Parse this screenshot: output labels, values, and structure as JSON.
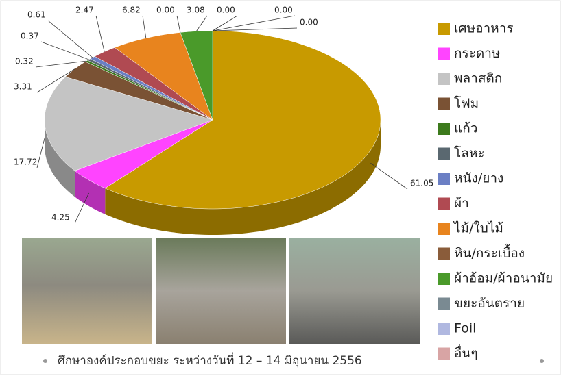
{
  "chart_data": {
    "type": "pie3d",
    "categories": [
      "เศษอาหาร",
      "กระดาษ",
      "พลาสติก",
      "โฟม",
      "แก้ว",
      "โลหะ",
      "หนัง/ยาง",
      "ผ้า",
      "ไม้/ใบไม้",
      "หิน/กระเบื้อง",
      "ผ้าอ้อม/ผ้าอนามัย",
      "ขยะอันตราย",
      "Foil",
      "อื่นๆ"
    ],
    "values": [
      61.05,
      4.25,
      17.72,
      3.31,
      0.32,
      0.37,
      0.61,
      2.47,
      6.82,
      0,
      3.08,
      0,
      0,
      0
    ],
    "value_labels": [
      "61.05",
      "4.25",
      "17.72",
      "3.31",
      "0.32",
      "0.37",
      "0.61",
      "2.47",
      "6.82",
      "0.00",
      "3.08",
      "0.00",
      "0.00",
      "0.00"
    ],
    "colors": [
      "#c89a00",
      "#ff44ff",
      "#c4c4c4",
      "#7a5234",
      "#3c7a1c",
      "#5a6870",
      "#6b7fc4",
      "#b04a52",
      "#e8841e",
      "#8a5c3a",
      "#4a9a2a",
      "#7a8a92",
      "#b0b8e0",
      "#d8a4a4"
    ],
    "caption": "ศึกษาองค์ประกอบขยะ ระหว่างวันที่ 12 – 14 มิถุนายน 2556"
  }
}
